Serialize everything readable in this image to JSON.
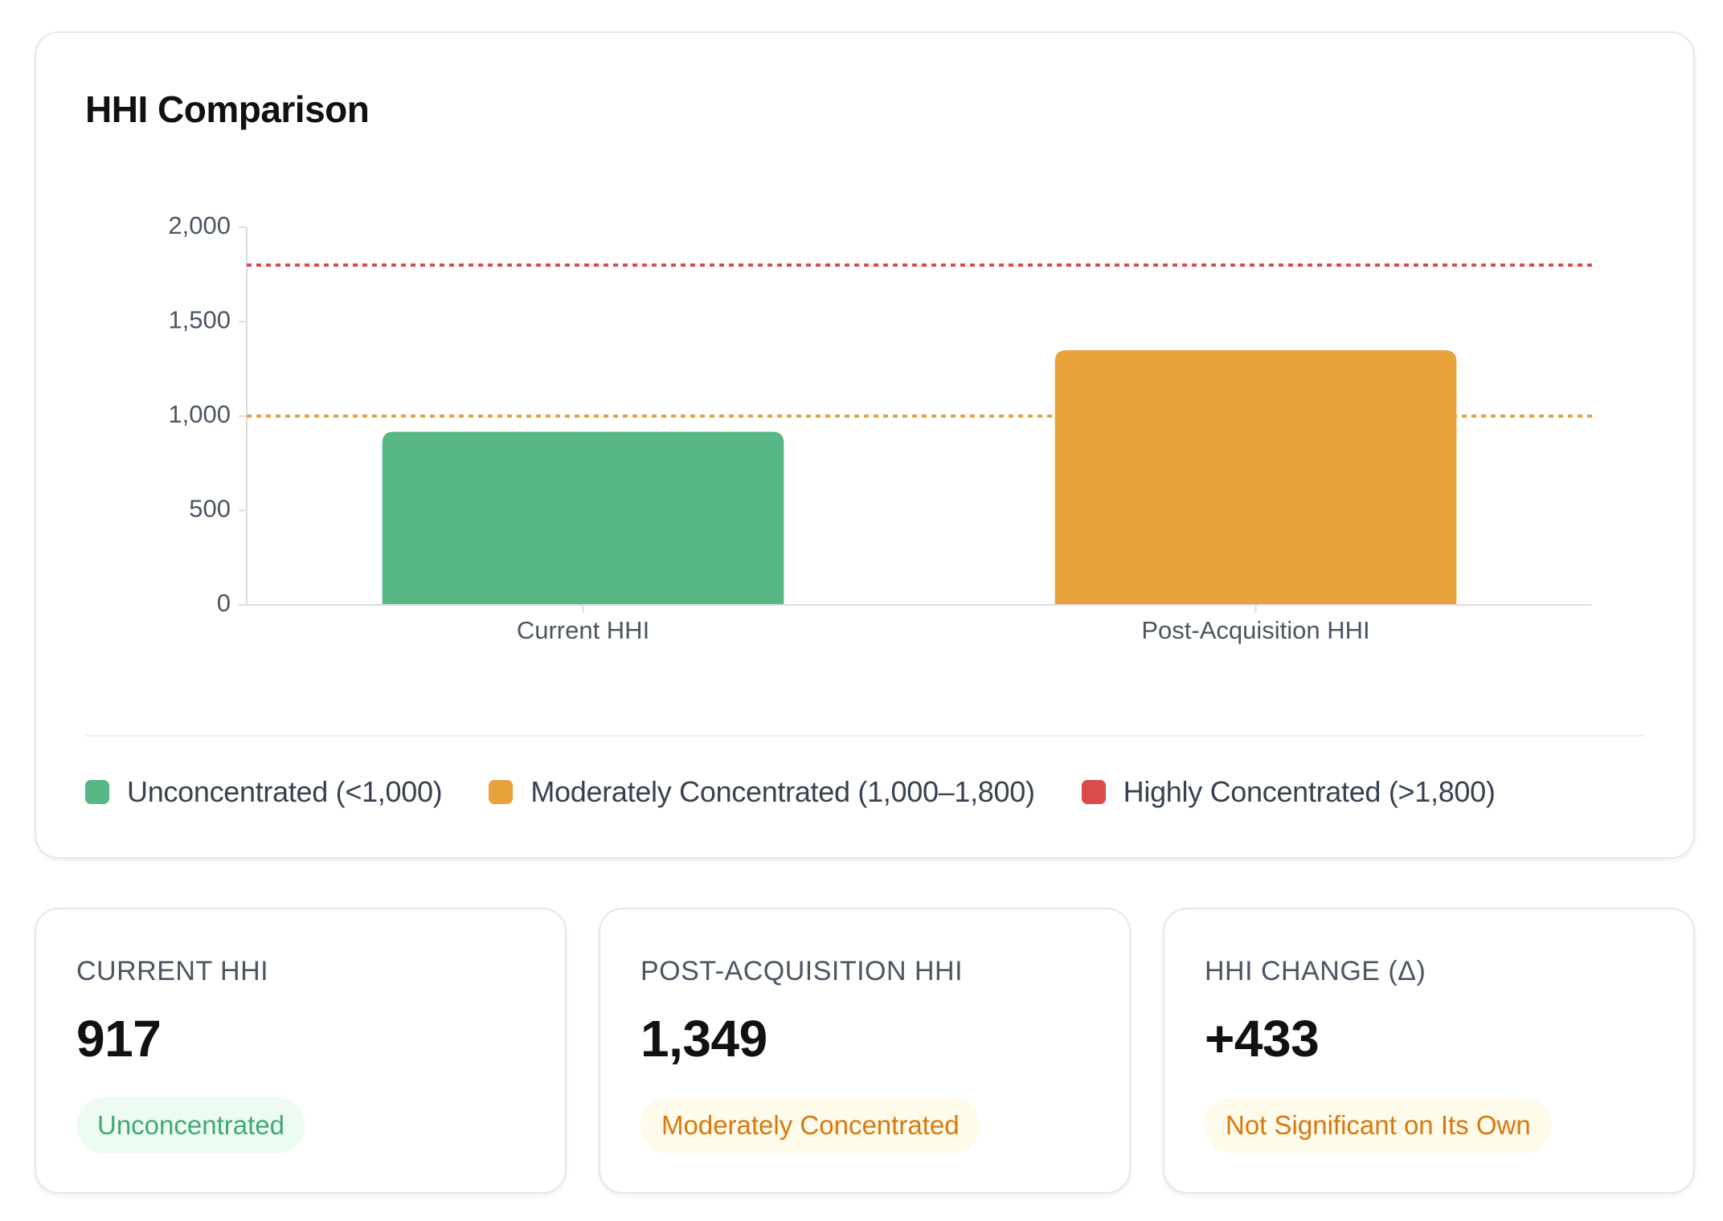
{
  "chart_data": {
    "type": "bar",
    "title": "HHI Comparison",
    "categories": [
      "Current HHI",
      "Post-Acquisition HHI"
    ],
    "values": [
      917,
      1349
    ],
    "bar_colors": [
      "#57b785",
      "#e8a23c"
    ],
    "ylim": [
      0,
      2000
    ],
    "yticks": [
      0,
      500,
      1000,
      1500,
      2000
    ],
    "ytick_labels": [
      "0",
      "500",
      "1,000",
      "1,500",
      "2,000"
    ],
    "xlabel": "",
    "ylabel": "",
    "reference_lines": [
      {
        "value": 1000,
        "color": "#e8a23c",
        "style": "dotted"
      },
      {
        "value": 1800,
        "color": "#dc4b4b",
        "style": "dotted"
      }
    ],
    "grid": false,
    "legend": {
      "placement": "bottom",
      "items": [
        {
          "label": "Unconcentrated (<1,000)",
          "color": "#57b785"
        },
        {
          "label": "Moderately Concentrated (1,000–1,800)",
          "color": "#e8a23c"
        },
        {
          "label": "Highly Concentrated (>1,800)",
          "color": "#dc4b4b"
        }
      ]
    }
  },
  "stats": [
    {
      "label": "CURRENT HHI",
      "value": "917",
      "badge": "Unconcentrated",
      "badge_color": "#3faa72"
    },
    {
      "label": "POST-ACQUISITION HHI",
      "value": "1,349",
      "badge": "Moderately Concentrated",
      "badge_color": "#d9780f"
    },
    {
      "label": "HHI CHANGE (Δ)",
      "value": "+433",
      "badge": "Not Significant on Its Own",
      "badge_color": "#d9780f"
    }
  ]
}
